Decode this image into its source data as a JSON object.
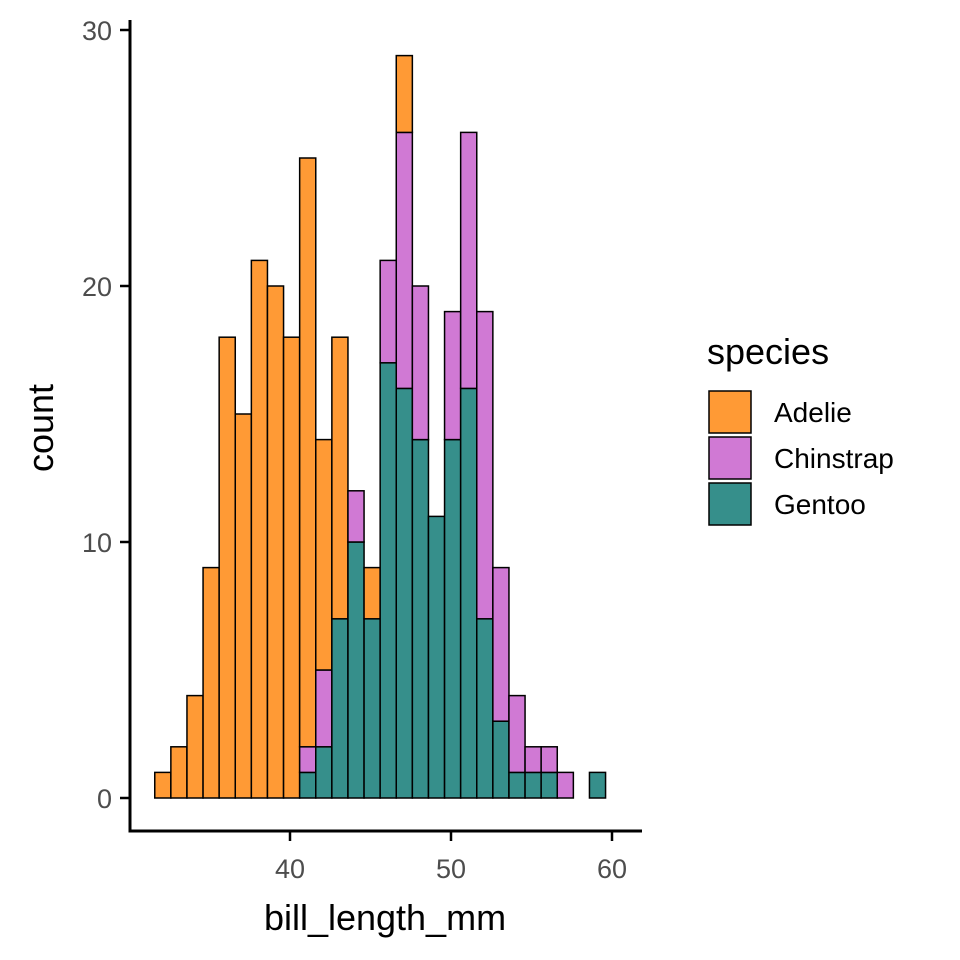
{
  "chart_data": {
    "type": "bar",
    "stacked": true,
    "xlabel": "bill_length_mm",
    "ylabel": "count",
    "xlim": [
      31,
      62
    ],
    "ylim": [
      0,
      30
    ],
    "x_ticks": [
      40,
      50,
      60
    ],
    "y_ticks": [
      0,
      10,
      20,
      30
    ],
    "bin_start": 31.6,
    "bin_width": 1.0,
    "legend": {
      "title": "species",
      "position": "right"
    },
    "series": [
      {
        "name": "Gentoo",
        "color": "#368f8b",
        "values": [
          0,
          0,
          0,
          0,
          0,
          0,
          0,
          0,
          0,
          1,
          2,
          7,
          10,
          7,
          17,
          16,
          14,
          11,
          14,
          16,
          7,
          3,
          1,
          1,
          1,
          0,
          0,
          1
        ]
      },
      {
        "name": "Chinstrap",
        "color": "#d079d4",
        "values": [
          0,
          0,
          0,
          0,
          0,
          0,
          0,
          0,
          0,
          1,
          3,
          0,
          2,
          0,
          4,
          10,
          6,
          0,
          5,
          10,
          12,
          6,
          3,
          1,
          1,
          1,
          0,
          0
        ]
      },
      {
        "name": "Adelie",
        "color": "#ff9a35",
        "values": [
          1,
          2,
          4,
          9,
          18,
          15,
          21,
          20,
          18,
          23,
          9,
          11,
          0,
          2,
          0,
          3,
          0,
          0,
          0,
          0,
          0,
          0,
          0,
          0,
          0,
          0,
          0,
          0
        ]
      }
    ]
  }
}
